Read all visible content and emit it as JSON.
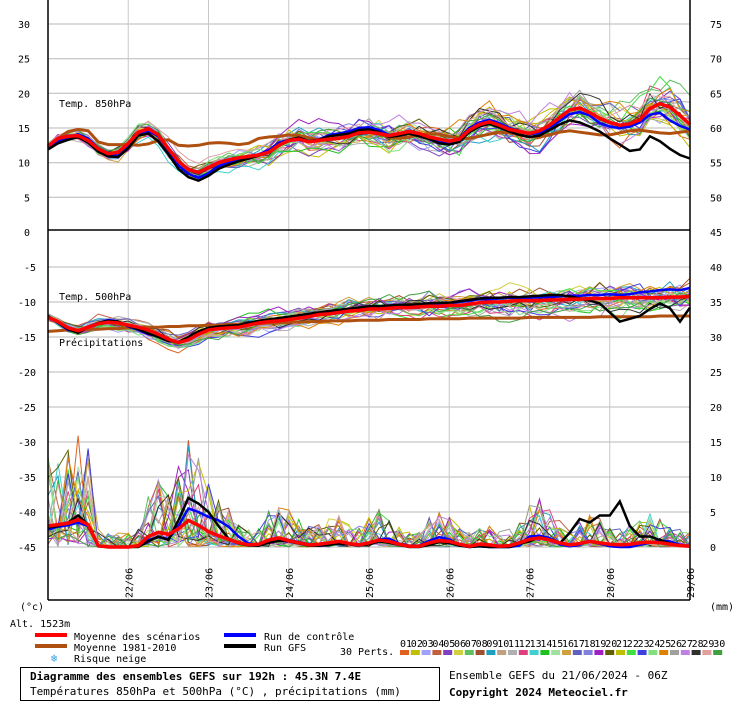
{
  "chart_data": {
    "type": "line",
    "x_labels": [
      "22/06",
      "23/06",
      "24/06",
      "25/06",
      "26/06",
      "27/06",
      "28/06",
      "29/06"
    ],
    "steps": 65,
    "y_left_upper": [
      "30",
      "25",
      "20",
      "15",
      "10",
      "5",
      "0"
    ],
    "y_right_upper": [
      "75",
      "70",
      "65",
      "60",
      "55",
      "50",
      "45"
    ],
    "y_left_lower": [
      "-5",
      "-10",
      "-15",
      "-20",
      "-25",
      "-30",
      "-35",
      "-40",
      "-45"
    ],
    "y_right_lower": [
      "40",
      "35",
      "30",
      "25",
      "20",
      "15",
      "10",
      "5",
      "0"
    ],
    "unit_left": "(°c)",
    "unit_right": "(mm)",
    "altitude": "Alt. 1523m",
    "panel_labels": {
      "t850": "Temp. 850hPa",
      "t500": "Temp. 500hPa",
      "precip": "Précipitations"
    },
    "series": [
      {
        "name": "Moyenne des scénarios",
        "color": "#ff0000"
      },
      {
        "name": "Moyenne 1981-2010",
        "color": "#b05010"
      },
      {
        "name": "Run de contrôle",
        "color": "#0000ff"
      },
      {
        "name": "Run GFS",
        "color": "#000000"
      }
    ],
    "t850": {
      "mean": [
        12.4,
        13.5,
        13.8,
        13.9,
        13.2,
        12.0,
        11.3,
        11.5,
        12.8,
        14.4,
        14.9,
        14.0,
        12.0,
        10.2,
        9.0,
        8.6,
        9.3,
        10.0,
        10.4,
        10.7,
        10.9,
        11.1,
        11.5,
        12.5,
        13.2,
        13.4,
        13.0,
        13.2,
        13.4,
        13.5,
        13.8,
        14.3,
        14.4,
        14.2,
        13.9,
        14.2,
        14.5,
        14.2,
        13.7,
        13.4,
        13.1,
        13.4,
        14.7,
        15.5,
        15.9,
        15.4,
        14.8,
        14.5,
        14.2,
        14.6,
        15.4,
        16.5,
        17.6,
        17.9,
        17.2,
        16.4,
        15.8,
        15.4,
        15.6,
        16.2,
        17.8,
        18.5,
        18.0,
        16.8,
        15.5
      ],
      "control": [
        12.0,
        13.0,
        13.6,
        14.1,
        13.5,
        12.1,
        11.2,
        11.0,
        12.2,
        14.0,
        14.6,
        13.8,
        11.8,
        9.6,
        8.4,
        7.8,
        8.5,
        9.5,
        10.0,
        10.5,
        10.9,
        11.2,
        11.8,
        12.9,
        13.3,
        13.6,
        13.1,
        13.3,
        14.0,
        14.2,
        14.5,
        15.0,
        15.1,
        14.7,
        14.0,
        14.2,
        14.6,
        14.0,
        13.5,
        13.1,
        12.9,
        13.5,
        15.0,
        15.8,
        16.2,
        15.7,
        15.0,
        14.6,
        14.1,
        14.3,
        15.0,
        16.0,
        17.0,
        17.3,
        16.8,
        15.7,
        15.2,
        15.0,
        15.2,
        15.8,
        16.9,
        17.2,
        16.1,
        15.3,
        14.8
      ],
      "gfs": [
        11.9,
        12.8,
        13.3,
        13.7,
        12.9,
        11.6,
        10.9,
        10.8,
        12.1,
        13.9,
        14.2,
        13.1,
        11.2,
        9.1,
        7.9,
        7.4,
        8.1,
        9.1,
        9.7,
        10.2,
        10.6,
        11.0,
        11.6,
        12.6,
        13.3,
        13.6,
        13.1,
        13.3,
        13.8,
        14.0,
        14.2,
        14.7,
        14.8,
        14.4,
        13.7,
        13.9,
        14.2,
        13.8,
        13.4,
        12.8,
        12.6,
        13.0,
        14.4,
        15.2,
        15.6,
        15.1,
        14.5,
        14.0,
        13.7,
        13.9,
        14.7,
        15.5,
        16.1,
        15.8,
        15.2,
        14.5,
        13.5,
        12.6,
        11.7,
        11.9,
        13.8,
        13.1,
        12.0,
        11.1,
        10.6
      ],
      "climate": [
        12.2,
        13.5,
        14.5,
        14.8,
        14.6,
        13.0,
        12.6,
        12.6,
        12.6,
        12.5,
        12.7,
        13.2,
        13.3,
        12.5,
        12.4,
        12.5,
        12.8,
        12.9,
        12.8,
        12.6,
        12.8,
        13.5,
        13.7,
        13.8,
        14.0,
        13.9,
        13.6,
        13.3,
        13.3,
        13.6,
        14.0,
        14.3,
        14.4,
        14.1,
        13.7,
        13.5,
        13.7,
        14.0,
        14.2,
        14.1,
        13.8,
        13.5,
        13.5,
        13.8,
        14.1,
        14.4,
        14.3,
        14.0,
        13.7,
        13.7,
        14.0,
        14.4,
        14.6,
        14.4,
        14.2,
        14.0,
        14.0,
        14.3,
        14.6,
        14.7,
        14.5,
        14.3,
        14.2,
        14.4,
        14.6
      ]
    },
    "t500": {
      "mean": [
        -12.2,
        -12.8,
        -13.7,
        -14.1,
        -13.6,
        -13.1,
        -12.9,
        -13.0,
        -13.3,
        -13.6,
        -14.0,
        -14.6,
        -15.3,
        -15.8,
        -15.4,
        -14.6,
        -14.0,
        -13.8,
        -13.7,
        -13.6,
        -13.3,
        -13.0,
        -12.8,
        -12.7,
        -12.5,
        -12.3,
        -12.1,
        -11.8,
        -11.7,
        -11.5,
        -11.3,
        -11.2,
        -11.0,
        -11.0,
        -10.9,
        -10.8,
        -10.8,
        -10.7,
        -10.6,
        -10.6,
        -10.5,
        -10.5,
        -10.3,
        -10.1,
        -10.0,
        -10.0,
        -9.9,
        -9.8,
        -9.8,
        -9.8,
        -9.7,
        -9.7,
        -9.6,
        -9.6,
        -9.5,
        -9.5,
        -9.5,
        -9.4,
        -9.4,
        -9.4,
        -9.4,
        -9.4,
        -9.3,
        -9.3,
        -9.2
      ],
      "control": [
        -12.0,
        -13.0,
        -14.0,
        -14.3,
        -13.5,
        -13.0,
        -12.6,
        -12.8,
        -13.5,
        -14.0,
        -14.6,
        -14.9,
        -15.5,
        -15.8,
        -15.2,
        -14.4,
        -13.8,
        -13.7,
        -13.5,
        -13.4,
        -13.2,
        -12.9,
        -12.6,
        -12.4,
        -12.3,
        -12.1,
        -11.9,
        -11.7,
        -11.5,
        -11.3,
        -11.2,
        -11.0,
        -10.8,
        -10.8,
        -10.6,
        -10.5,
        -10.5,
        -10.4,
        -10.3,
        -10.2,
        -10.2,
        -10.0,
        -9.8,
        -9.6,
        -9.6,
        -9.5,
        -9.4,
        -9.4,
        -9.4,
        -9.3,
        -9.3,
        -9.2,
        -9.1,
        -9.1,
        -9.0,
        -9.0,
        -8.9,
        -9.0,
        -8.9,
        -8.6,
        -8.5,
        -8.3,
        -8.2,
        -8.3,
        -8.0
      ],
      "gfs": [
        -12.0,
        -12.9,
        -13.9,
        -14.4,
        -13.6,
        -13.0,
        -12.7,
        -12.8,
        -13.4,
        -13.9,
        -14.5,
        -15.0,
        -15.6,
        -15.7,
        -15.0,
        -14.2,
        -13.7,
        -13.5,
        -13.4,
        -13.3,
        -13.0,
        -12.7,
        -12.5,
        -12.3,
        -12.1,
        -11.9,
        -11.7,
        -11.5,
        -11.3,
        -11.1,
        -11.0,
        -10.8,
        -10.6,
        -10.6,
        -10.5,
        -10.4,
        -10.4,
        -10.3,
        -10.2,
        -10.1,
        -10.1,
        -9.9,
        -9.7,
        -9.5,
        -9.4,
        -9.4,
        -9.3,
        -9.3,
        -9.2,
        -9.1,
        -9.0,
        -9.0,
        -9.2,
        -9.5,
        -9.8,
        -10.2,
        -11.5,
        -12.8,
        -12.4,
        -12.0,
        -11.0,
        -10.2,
        -10.9,
        -12.8,
        -10.8
      ],
      "climate": [
        -14.2,
        -14.1,
        -14.0,
        -14.0,
        -13.9,
        -13.9,
        -13.8,
        -13.8,
        -13.7,
        -13.7,
        -13.6,
        -13.6,
        -13.5,
        -13.5,
        -13.4,
        -13.4,
        -13.3,
        -13.3,
        -13.2,
        -13.2,
        -13.1,
        -13.1,
        -13.0,
        -13.0,
        -12.9,
        -12.9,
        -12.8,
        -12.8,
        -12.7,
        -12.7,
        -12.7,
        -12.6,
        -12.6,
        -12.6,
        -12.5,
        -12.5,
        -12.5,
        -12.5,
        -12.4,
        -12.4,
        -12.4,
        -12.4,
        -12.3,
        -12.3,
        -12.3,
        -12.3,
        -12.3,
        -12.3,
        -12.2,
        -12.2,
        -12.2,
        -12.2,
        -12.2,
        -12.2,
        -12.2,
        -12.1,
        -12.1,
        -12.1,
        -12.1,
        -12.1,
        -12.1,
        -12.0,
        -12.0,
        -12.0,
        -12.0
      ]
    },
    "precip": {
      "mean": [
        3.0,
        3.2,
        3.4,
        3.9,
        3.2,
        0.2,
        0,
        0,
        0,
        0.2,
        1.5,
        2.1,
        1.8,
        2.6,
        3.8,
        3.1,
        2.2,
        1.6,
        1.1,
        0.6,
        0.3,
        0.4,
        1.0,
        1.3,
        0.9,
        0.6,
        0.3,
        0.4,
        0.6,
        0.8,
        0.5,
        0.3,
        0.6,
        1.0,
        0.8,
        0.4,
        0.1,
        0.1,
        0.6,
        0.9,
        0.8,
        0.4,
        0.1,
        0.4,
        0.3,
        0.1,
        0.2,
        0.6,
        1.1,
        1.3,
        1.0,
        0.6,
        0.3,
        0.5,
        0.8,
        0.6,
        0.4,
        0.3,
        0.4,
        0.6,
        0.7,
        0.6,
        0.4,
        0.2,
        0.1
      ],
      "control": [
        2.5,
        2.9,
        3.1,
        3.5,
        3.0,
        0.1,
        0,
        0,
        0,
        0.1,
        1.0,
        1.4,
        1.1,
        3.0,
        5.5,
        5.0,
        4.3,
        3.8,
        2.9,
        1.5,
        0.5,
        0.3,
        0.8,
        1.3,
        1.0,
        0.7,
        0.4,
        0.2,
        0.3,
        0.6,
        0.5,
        0.3,
        0.4,
        1.1,
        1.2,
        0.5,
        0.2,
        0.2,
        0.9,
        1.4,
        1.1,
        0.3,
        0.0,
        0.1,
        0.0,
        0.0,
        0.0,
        0.2,
        1.5,
        1.6,
        1.3,
        0.4,
        0.1,
        0.3,
        0.9,
        0.5,
        0.1,
        0.0,
        0.0,
        0.3,
        0.6,
        0.9,
        0.8,
        0.3,
        0.1
      ],
      "gfs": [
        2.8,
        3.0,
        3.5,
        4.5,
        3.2,
        0.1,
        0,
        0,
        0,
        0,
        0.8,
        1.5,
        1.0,
        3.8,
        7.0,
        6.2,
        5.0,
        3.0,
        1.2,
        0.5,
        0.2,
        0.2,
        0.6,
        0.9,
        0.8,
        0.5,
        0.2,
        0.2,
        0.3,
        0.5,
        0.4,
        0.2,
        0.4,
        0.8,
        0.6,
        0.3,
        0.0,
        0.0,
        0.3,
        0.7,
        0.6,
        0.2,
        0.0,
        0.1,
        0.0,
        0.0,
        0.0,
        0.5,
        0.8,
        1.4,
        1.0,
        0.5,
        2.0,
        4.0,
        3.5,
        4.5,
        4.5,
        6.5,
        3.0,
        1.5,
        1.5,
        1.0,
        0.5,
        0.2,
        0.1
      ]
    },
    "legend": {
      "mean_label": "Moyenne des scénarios",
      "climate_label": "Moyenne 1981-2010",
      "control_label": "Run de contrôle",
      "gfs_label": "Run GFS",
      "snow_label": "Risque neige",
      "perts_label": "30 Perts.",
      "perts_numbers": [
        "01",
        "02",
        "03",
        "04",
        "05",
        "06",
        "07",
        "08",
        "09",
        "10",
        "11",
        "12",
        "13",
        "14",
        "15",
        "16",
        "17",
        "18",
        "19",
        "20",
        "21",
        "22",
        "23",
        "24",
        "25",
        "26",
        "27",
        "28",
        "29",
        "30"
      ],
      "perts_colors": [
        "#e06020",
        "#c0c000",
        "#a0a0ff",
        "#c06040",
        "#8040c0",
        "#d0d040",
        "#60c060",
        "#a05030",
        "#20a0c0",
        "#c0a080",
        "#b0b0b0",
        "#e04080",
        "#40d0d0",
        "#20c020",
        "#a0e0a0",
        "#d0a040",
        "#6060c0",
        "#8080e0",
        "#a020c0",
        "#606000",
        "#c0c000",
        "#40e040",
        "#4040e0",
        "#80e080",
        "#e08000",
        "#a0a0a0",
        "#c080e0",
        "#303030",
        "#e0a0a0",
        "#40a040"
      ]
    },
    "footer": {
      "title": "Diagramme des ensembles GEFS sur 192h : 45.3N 7.4E",
      "subtitle": "Températures 850hPa et 500hPa (°C) , précipitations (mm)",
      "run": "Ensemble GEFS du 21/06/2024 - 06Z",
      "copyright": "Copyright 2024 Meteociel.fr"
    }
  }
}
